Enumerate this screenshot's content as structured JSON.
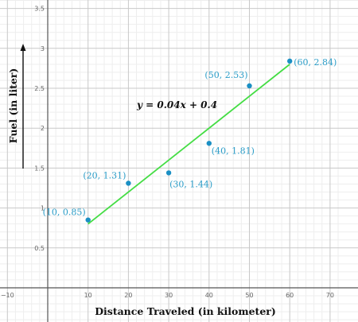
{
  "chart_data": {
    "type": "scatter",
    "xlabel": "Distance Traveled (in kilometer)",
    "ylabel": "Fuel (in liter)",
    "xlim": [
      -12,
      72
    ],
    "ylim": [
      -0.55,
      3.5
    ],
    "grid": true,
    "x_ticks": [
      -10,
      10,
      20,
      30,
      40,
      50,
      60,
      70
    ],
    "y_ticks": [
      0.5,
      1,
      1.5,
      2,
      2.5,
      3,
      3.5
    ],
    "x_tick_labels": [
      "−10",
      "10",
      "20",
      "30",
      "40",
      "50",
      "60",
      "70"
    ],
    "y_tick_labels": [
      "0.5",
      "1",
      "1.5",
      "2",
      "2.5",
      "3",
      "3.5"
    ],
    "points": [
      {
        "x": 10,
        "y": 0.85,
        "label": "(10, 0.85)"
      },
      {
        "x": 20,
        "y": 1.31,
        "label": "(20, 1.31)"
      },
      {
        "x": 30,
        "y": 1.44,
        "label": "(30, 1.44)"
      },
      {
        "x": 40,
        "y": 1.81,
        "label": "(40, 1.81)"
      },
      {
        "x": 50,
        "y": 2.53,
        "label": "(50, 2.53)"
      },
      {
        "x": 60,
        "y": 2.84,
        "label": "(60, 2.84)"
      }
    ],
    "fit_line": {
      "equation": "y = 0.04x + 0.4",
      "slope": 0.04,
      "intercept": 0.4,
      "x_range": [
        10,
        60
      ]
    },
    "colors": {
      "points": "#1a8fc4",
      "labels": "#2b9dc8",
      "fit_line": "#44dd44",
      "grid_major": "#c8c8c8",
      "grid_minor": "#eeeeee",
      "axis": "#555555"
    }
  }
}
